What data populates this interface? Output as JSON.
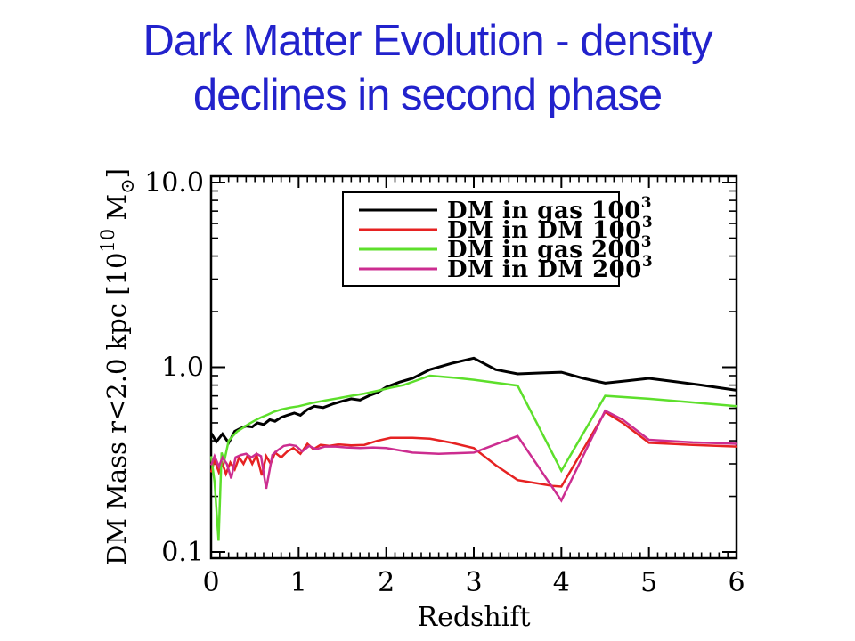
{
  "slide": {
    "background": "#ffffff",
    "title_line1": "Dark Matter Evolution - density",
    "title_line2": "declines in second phase",
    "title_color": "#2222cc"
  },
  "chart_data": {
    "type": "line",
    "title": "",
    "xlabel": "Redshift",
    "ylabel": "DM Mass r<2.0 kpc [10^10 Msun]",
    "ylabel_parts": [
      {
        "t": "DM Mass r<2.0 kpc [10",
        "s": "n"
      },
      {
        "t": "10",
        "s": "sup"
      },
      {
        "t": " M",
        "s": "n"
      },
      {
        "t": "⊙",
        "s": "sub"
      },
      {
        "t": "]",
        "s": "n"
      }
    ],
    "xlim": [
      0,
      6
    ],
    "ylim": [
      0.1,
      10.0
    ],
    "yscale": "log",
    "grid": false,
    "frame_color": "#000000",
    "x_ticks": [
      {
        "v": 0,
        "label": "0"
      },
      {
        "v": 1,
        "label": "1"
      },
      {
        "v": 2,
        "label": "2"
      },
      {
        "v": 3,
        "label": "3"
      },
      {
        "v": 4,
        "label": "4"
      },
      {
        "v": 5,
        "label": "5"
      },
      {
        "v": 6,
        "label": "6"
      }
    ],
    "x_minor_step": 0.1,
    "y_ticks": [
      {
        "v": 0.1,
        "label": "0.1"
      },
      {
        "v": 1.0,
        "label": "1.0"
      },
      {
        "v": 10.0,
        "label": "10.0"
      }
    ],
    "y_minor_multiples": [
      2,
      3,
      4,
      5,
      6,
      7,
      8,
      9
    ],
    "legend": {
      "position": "upper center",
      "entries": [
        {
          "label": "DM in gas 100",
          "exponent": "3",
          "color": "#000000"
        },
        {
          "label": "DM in DM 100",
          "exponent": "3",
          "color": "#e62222"
        },
        {
          "label": "DM in gas 200",
          "exponent": "3",
          "color": "#5ddf2b"
        },
        {
          "label": "DM in DM 200",
          "exponent": "3",
          "color": "#cc2d90"
        }
      ]
    },
    "series": [
      {
        "name": "DM in gas 100^3",
        "color": "#000000",
        "width": 3,
        "points": [
          [
            0,
            0.44
          ],
          [
            0.06,
            0.395
          ],
          [
            0.13,
            0.435
          ],
          [
            0.2,
            0.39
          ],
          [
            0.27,
            0.45
          ],
          [
            0.33,
            0.465
          ],
          [
            0.4,
            0.48
          ],
          [
            0.47,
            0.475
          ],
          [
            0.53,
            0.5
          ],
          [
            0.6,
            0.49
          ],
          [
            0.67,
            0.52
          ],
          [
            0.73,
            0.51
          ],
          [
            0.8,
            0.535
          ],
          [
            0.87,
            0.55
          ],
          [
            0.95,
            0.565
          ],
          [
            1.02,
            0.55
          ],
          [
            1.1,
            0.59
          ],
          [
            1.18,
            0.615
          ],
          [
            1.28,
            0.605
          ],
          [
            1.4,
            0.635
          ],
          [
            1.5,
            0.655
          ],
          [
            1.6,
            0.675
          ],
          [
            1.7,
            0.665
          ],
          [
            1.8,
            0.7
          ],
          [
            1.9,
            0.73
          ],
          [
            2.0,
            0.78
          ],
          [
            2.15,
            0.83
          ],
          [
            2.3,
            0.87
          ],
          [
            2.5,
            0.97
          ],
          [
            2.75,
            1.05
          ],
          [
            3.0,
            1.12
          ],
          [
            3.25,
            0.97
          ],
          [
            3.5,
            0.92
          ],
          [
            3.75,
            0.93
          ],
          [
            4.0,
            0.94
          ],
          [
            4.25,
            0.87
          ],
          [
            4.5,
            0.82
          ],
          [
            4.75,
            0.845
          ],
          [
            5.0,
            0.87
          ],
          [
            5.3,
            0.835
          ],
          [
            5.6,
            0.8
          ],
          [
            6.0,
            0.75
          ]
        ]
      },
      {
        "name": "DM in DM 100^3",
        "color": "#e62222",
        "width": 2.5,
        "points": [
          [
            0,
            0.27
          ],
          [
            0.04,
            0.315
          ],
          [
            0.09,
            0.27
          ],
          [
            0.13,
            0.3
          ],
          [
            0.17,
            0.265
          ],
          [
            0.22,
            0.305
          ],
          [
            0.27,
            0.28
          ],
          [
            0.32,
            0.325
          ],
          [
            0.37,
            0.3
          ],
          [
            0.42,
            0.335
          ],
          [
            0.47,
            0.3
          ],
          [
            0.52,
            0.335
          ],
          [
            0.58,
            0.26
          ],
          [
            0.63,
            0.33
          ],
          [
            0.68,
            0.3
          ],
          [
            0.73,
            0.345
          ],
          [
            0.8,
            0.325
          ],
          [
            0.87,
            0.35
          ],
          [
            0.94,
            0.365
          ],
          [
            1.02,
            0.34
          ],
          [
            1.1,
            0.385
          ],
          [
            1.17,
            0.36
          ],
          [
            1.25,
            0.38
          ],
          [
            1.35,
            0.375
          ],
          [
            1.45,
            0.382
          ],
          [
            1.6,
            0.378
          ],
          [
            1.75,
            0.38
          ],
          [
            1.9,
            0.4
          ],
          [
            2.05,
            0.415
          ],
          [
            2.3,
            0.415
          ],
          [
            2.5,
            0.41
          ],
          [
            2.75,
            0.39
          ],
          [
            3.0,
            0.365
          ],
          [
            3.25,
            0.295
          ],
          [
            3.5,
            0.245
          ],
          [
            3.9,
            0.228
          ],
          [
            4.0,
            0.226
          ],
          [
            4.5,
            0.572
          ],
          [
            4.7,
            0.5
          ],
          [
            5.0,
            0.39
          ],
          [
            5.5,
            0.38
          ],
          [
            6.0,
            0.372
          ]
        ]
      },
      {
        "name": "DM in gas 200^3",
        "color": "#5ddf2b",
        "width": 2.5,
        "points": [
          [
            0,
            0.33
          ],
          [
            0.04,
            0.24
          ],
          [
            0.085,
            0.115
          ],
          [
            0.12,
            0.345
          ],
          [
            0.15,
            0.31
          ],
          [
            0.2,
            0.4
          ],
          [
            0.25,
            0.425
          ],
          [
            0.3,
            0.45
          ],
          [
            0.35,
            0.465
          ],
          [
            0.42,
            0.49
          ],
          [
            0.5,
            0.515
          ],
          [
            0.57,
            0.535
          ],
          [
            0.65,
            0.555
          ],
          [
            0.72,
            0.575
          ],
          [
            0.8,
            0.59
          ],
          [
            0.9,
            0.605
          ],
          [
            1.0,
            0.615
          ],
          [
            1.15,
            0.64
          ],
          [
            1.3,
            0.66
          ],
          [
            1.45,
            0.68
          ],
          [
            1.6,
            0.7
          ],
          [
            1.75,
            0.72
          ],
          [
            1.9,
            0.745
          ],
          [
            2.05,
            0.775
          ],
          [
            2.2,
            0.8
          ],
          [
            2.5,
            0.9
          ],
          [
            2.8,
            0.875
          ],
          [
            3.0,
            0.855
          ],
          [
            3.5,
            0.795
          ],
          [
            4.0,
            0.275
          ],
          [
            4.5,
            0.7
          ],
          [
            5.0,
            0.675
          ],
          [
            5.5,
            0.645
          ],
          [
            6.0,
            0.615
          ]
        ]
      },
      {
        "name": "DM in DM 200^3",
        "color": "#cc2d90",
        "width": 2.5,
        "points": [
          [
            0,
            0.295
          ],
          [
            0.04,
            0.33
          ],
          [
            0.09,
            0.29
          ],
          [
            0.13,
            0.325
          ],
          [
            0.18,
            0.3
          ],
          [
            0.23,
            0.25
          ],
          [
            0.28,
            0.325
          ],
          [
            0.34,
            0.335
          ],
          [
            0.4,
            0.34
          ],
          [
            0.46,
            0.325
          ],
          [
            0.52,
            0.34
          ],
          [
            0.57,
            0.33
          ],
          [
            0.63,
            0.22
          ],
          [
            0.7,
            0.335
          ],
          [
            0.76,
            0.355
          ],
          [
            0.83,
            0.375
          ],
          [
            0.9,
            0.38
          ],
          [
            0.97,
            0.375
          ],
          [
            1.04,
            0.35
          ],
          [
            1.12,
            0.375
          ],
          [
            1.2,
            0.36
          ],
          [
            1.3,
            0.372
          ],
          [
            1.42,
            0.372
          ],
          [
            1.55,
            0.368
          ],
          [
            1.7,
            0.365
          ],
          [
            1.85,
            0.368
          ],
          [
            2.0,
            0.365
          ],
          [
            2.3,
            0.345
          ],
          [
            2.6,
            0.34
          ],
          [
            3.0,
            0.345
          ],
          [
            3.5,
            0.424
          ],
          [
            4.0,
            0.19
          ],
          [
            4.5,
            0.582
          ],
          [
            4.7,
            0.52
          ],
          [
            5.0,
            0.405
          ],
          [
            5.5,
            0.392
          ],
          [
            6.0,
            0.385
          ]
        ]
      }
    ]
  }
}
